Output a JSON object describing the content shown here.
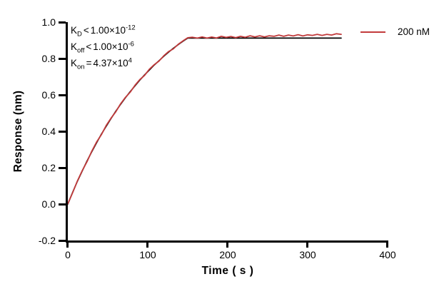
{
  "figure": {
    "background": "#ffffff",
    "axis_color": "#000000"
  },
  "chart_data": {
    "type": "line",
    "title": "",
    "xlabel": "Time ( s )",
    "ylabel": "Response (nm)",
    "xlim": [
      0,
      400
    ],
    "ylim": [
      -0.2,
      1.0
    ],
    "xticks": [
      0,
      100,
      200,
      300,
      400
    ],
    "yticks": [
      1.0,
      0.8,
      0.6,
      0.4,
      0.2,
      0.0,
      -0.2
    ],
    "xtick_labels": [
      "0",
      "100",
      "200",
      "300",
      "400"
    ],
    "ytick_labels": [
      "1.0",
      "0.8",
      "0.6",
      "0.4",
      "0.2",
      "0.0",
      "-0.2"
    ],
    "grid": false,
    "legend_position": "top-right",
    "legend": [
      {
        "label": "200 nM",
        "color": "#c23b3c"
      }
    ],
    "annotations": {
      "lines": [
        {
          "base": "K",
          "sub": "D",
          "rel": "<",
          "value": "1.00×10",
          "exp": "-12"
        },
        {
          "base": "K",
          "sub": "off",
          "rel": "<",
          "value": "1.00×10",
          "exp": "-6"
        },
        {
          "base": "K",
          "sub": "on",
          "rel": "=",
          "value": "4.37×10",
          "exp": "4"
        }
      ]
    },
    "series": [
      {
        "name": "fit",
        "color": "#000000",
        "width": 1.7,
        "x": [
          0,
          6,
          12,
          18,
          24,
          30,
          36,
          42,
          48,
          54,
          60,
          66,
          72,
          78,
          84,
          90,
          96,
          102,
          108,
          114,
          120,
          126,
          132,
          138,
          144,
          150,
          342
        ],
        "y": [
          0.0,
          0.064,
          0.125,
          0.182,
          0.237,
          0.288,
          0.337,
          0.384,
          0.428,
          0.47,
          0.51,
          0.548,
          0.584,
          0.618,
          0.65,
          0.681,
          0.71,
          0.737,
          0.764,
          0.788,
          0.812,
          0.835,
          0.856,
          0.876,
          0.895,
          0.912,
          0.912
        ]
      },
      {
        "name": "200 nM",
        "color": "#c23b3c",
        "width": 1.8,
        "x": [
          0,
          6,
          12,
          18,
          24,
          30,
          36,
          42,
          48,
          54,
          60,
          66,
          72,
          78,
          84,
          90,
          96,
          102,
          108,
          114,
          120,
          126,
          132,
          138,
          144,
          150,
          156,
          162,
          168,
          174,
          180,
          186,
          192,
          198,
          204,
          210,
          216,
          222,
          228,
          234,
          240,
          246,
          252,
          258,
          264,
          270,
          276,
          282,
          288,
          294,
          300,
          306,
          312,
          318,
          324,
          330,
          336,
          342
        ],
        "y": [
          0.002,
          0.062,
          0.127,
          0.184,
          0.233,
          0.291,
          0.341,
          0.381,
          0.432,
          0.472,
          0.507,
          0.551,
          0.586,
          0.615,
          0.653,
          0.684,
          0.707,
          0.741,
          0.766,
          0.786,
          0.815,
          0.838,
          0.853,
          0.878,
          0.897,
          0.914,
          0.917,
          0.912,
          0.919,
          0.912,
          0.918,
          0.913,
          0.922,
          0.916,
          0.921,
          0.915,
          0.922,
          0.917,
          0.925,
          0.919,
          0.925,
          0.919,
          0.925,
          0.922,
          0.929,
          0.922,
          0.929,
          0.924,
          0.931,
          0.924,
          0.93,
          0.927,
          0.933,
          0.927,
          0.933,
          0.929,
          0.936,
          0.933
        ]
      }
    ]
  }
}
